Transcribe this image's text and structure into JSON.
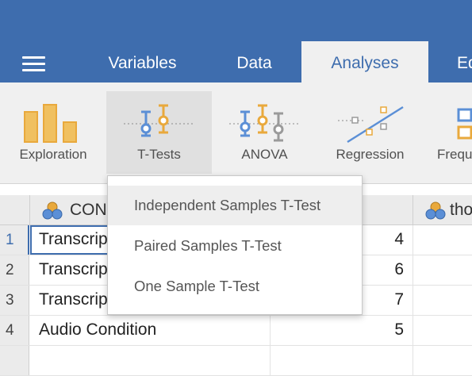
{
  "header": {
    "tabs": [
      {
        "label": "Variables",
        "active": false
      },
      {
        "label": "Data",
        "active": false
      },
      {
        "label": "Analyses",
        "active": true
      },
      {
        "label": "Ed",
        "active": false
      }
    ],
    "menu_icon": "hamburger-icon"
  },
  "ribbon": {
    "buttons": [
      {
        "label": "Exploration",
        "icon": "bar-chart-icon"
      },
      {
        "label": "T-Tests",
        "icon": "t-test-icon",
        "pressed": true
      },
      {
        "label": "ANOVA",
        "icon": "anova-icon"
      },
      {
        "label": "Regression",
        "icon": "regression-icon"
      },
      {
        "label": "Frequ",
        "icon": "frequencies-icon"
      }
    ]
  },
  "dropdown": {
    "items": [
      "Independent Samples T-Test",
      "Paired Samples T-Test",
      "One Sample T-Test"
    ]
  },
  "sheet": {
    "columns": [
      {
        "name": "CON",
        "icon": "nominal-variable-icon"
      },
      {
        "name": "",
        "icon": ""
      },
      {
        "name": "tho",
        "icon": "nominal-variable-icon"
      }
    ],
    "rows": [
      {
        "num": "1",
        "a": "Transcrip",
        "b": "4"
      },
      {
        "num": "2",
        "a": "Transcrip",
        "b": "6"
      },
      {
        "num": "3",
        "a": "Transcrip",
        "b": "7"
      },
      {
        "num": "4",
        "a": "Audio Condition",
        "b": "5"
      }
    ]
  },
  "colors": {
    "header_blue": "#3e6dae",
    "ribbon_bg": "#f0f0f0",
    "icon_blue": "#5b8fd6",
    "icon_orange": "#e9a93c",
    "icon_gray": "#9a9a9a"
  }
}
